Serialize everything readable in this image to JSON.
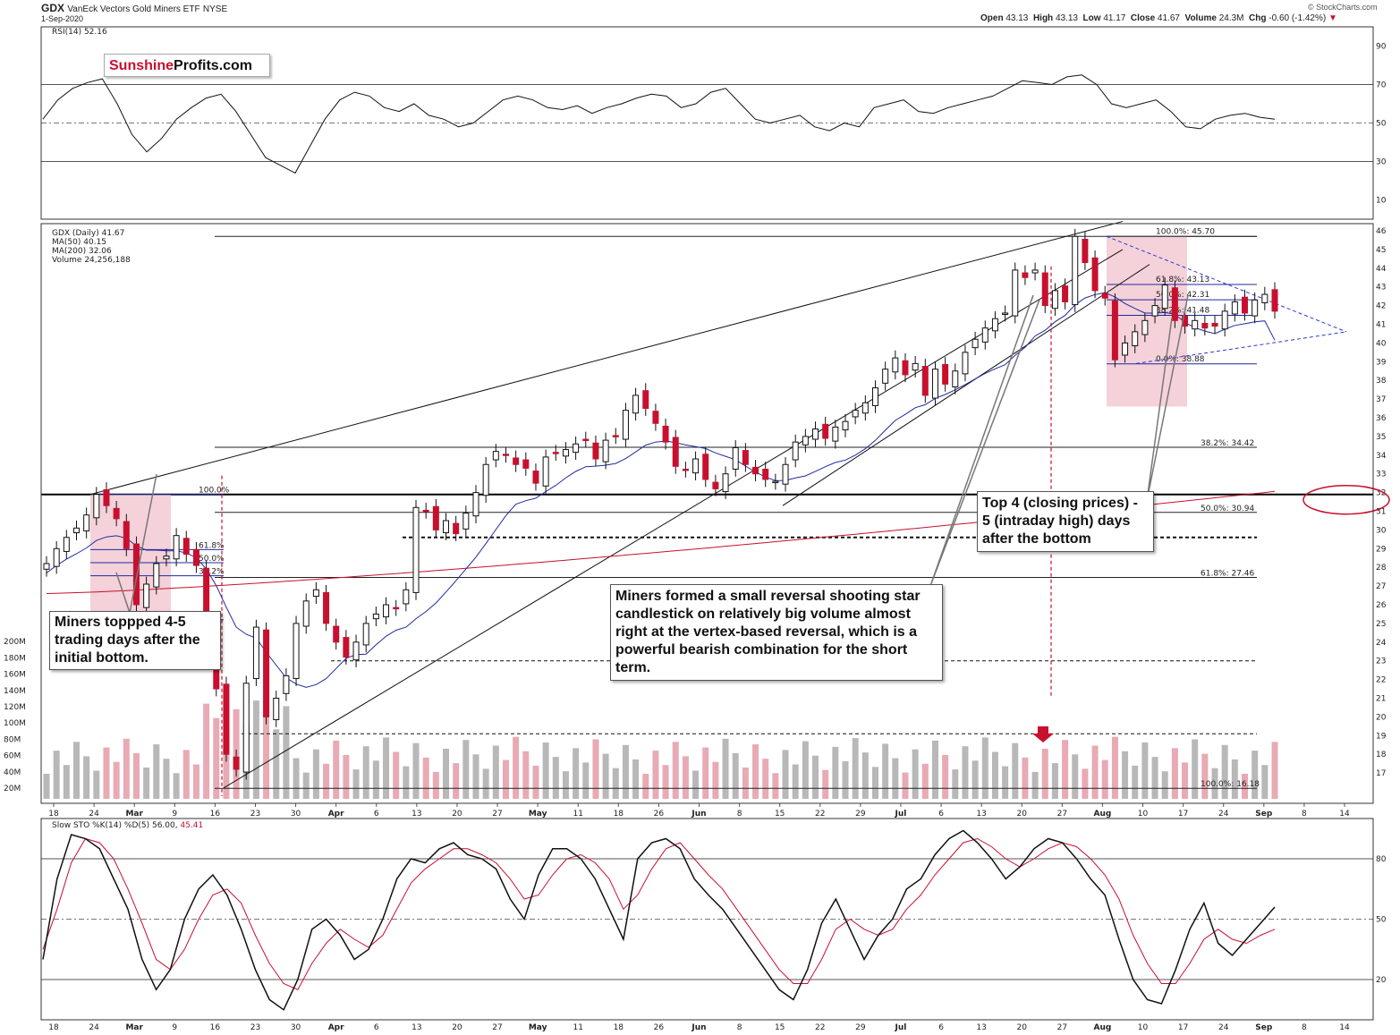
{
  "header": {
    "ticker": "GDX",
    "name": "VanEck Vectors Gold Miners ETF",
    "exchange": "NYSE",
    "date": "1-Sep-2020",
    "open_label": "Open",
    "open": "43.13",
    "high_label": "High",
    "high": "43.13",
    "low_label": "Low",
    "low": "41.17",
    "close_label": "Close",
    "close": "41.67",
    "volume_label": "Volume",
    "volume": "24.3M",
    "chg_label": "Chg",
    "chg": "-0.60 (-1.42%)",
    "chg_icon": "triangle-down-icon",
    "credit": "© StockCharts.com"
  },
  "logo": {
    "part1": "Sunshine",
    "part2": "Profits.com",
    "color1": "#c8102e",
    "color2": "#111111"
  },
  "colors": {
    "up": "#ffffff",
    "down": "#c8102e",
    "ma50": "#1f2a9e",
    "ma200": "#c8102e",
    "highlight": "#f3c6cf"
  },
  "annotations": {
    "left": "Miners toppped 4-5 trading days after the initial bottom.",
    "middle": "Miners formed a small reversal shooting star candlestick on relatively big volume almost right at the vertex-based reversal, which is a powerful bearish combination for the short term.",
    "right": "Top 4 (closing prices) - 5 (intraday high) days after the bottom"
  },
  "chart_data": [
    {
      "type": "line",
      "panel": "rsi",
      "title": "RSI(14) 52.16",
      "ylim": [
        0,
        100
      ],
      "yticks": [
        10,
        30,
        50,
        70,
        90
      ],
      "reference_lines": [
        30,
        50,
        70
      ],
      "values": [
        52,
        62,
        68,
        71,
        73,
        60,
        44,
        35,
        42,
        52,
        58,
        63,
        65,
        56,
        44,
        32,
        28,
        24,
        38,
        52,
        62,
        66,
        64,
        58,
        56,
        60,
        54,
        52,
        48,
        50,
        56,
        62,
        64,
        62,
        58,
        57,
        59,
        55,
        58,
        60,
        63,
        65,
        64,
        58,
        60,
        66,
        68,
        60,
        52,
        50,
        52,
        54,
        48,
        46,
        50,
        48,
        58,
        60,
        62,
        56,
        55,
        58,
        60,
        62,
        64,
        68,
        72,
        71,
        70,
        74,
        75,
        70,
        60,
        58,
        60,
        62,
        56,
        48,
        47,
        52,
        54,
        55,
        53,
        52
      ]
    },
    {
      "type": "candlestick",
      "panel": "price",
      "title": "GDX (Daily) 41.67",
      "legend": [
        "GDX (Daily) 41.67",
        "MA(50) 40.15",
        "MA(200) 32.06",
        "Volume 24,256,188"
      ],
      "ylim": [
        15,
        47
      ],
      "yticks": [
        17,
        18,
        19,
        20,
        21,
        22,
        23,
        24,
        25,
        26,
        27,
        28,
        29,
        30,
        31,
        32,
        33,
        34,
        35,
        36,
        37,
        38,
        39,
        40,
        41,
        42,
        43,
        44,
        45,
        46
      ],
      "volume_ticks": [
        "20M",
        "40M",
        "60M",
        "80M",
        "100M",
        "120M",
        "140M",
        "160M",
        "180M",
        "200M"
      ],
      "x_labels": [
        "18",
        "24",
        "Mar",
        "9",
        "16",
        "23",
        "30",
        "Apr",
        "6",
        "13",
        "20",
        "27",
        "May",
        "11",
        "18",
        "26",
        "Jun",
        "8",
        "15",
        "22",
        "29",
        "Jul",
        "6",
        "13",
        "20",
        "27",
        "Aug",
        "10",
        "17",
        "24",
        "Sep",
        "8",
        "14"
      ],
      "closes": [
        28.2,
        29.0,
        29.6,
        30.1,
        30.8,
        31.9,
        31.3,
        30.6,
        29.0,
        26.0,
        27.1,
        28.2,
        28.6,
        29.7,
        28.7,
        28.1,
        25.2,
        21.5,
        18.0,
        17.2,
        21.8,
        24.8,
        20.0,
        21.0,
        22.2,
        25.0,
        26.2,
        26.8,
        25.0,
        24.0,
        23.2,
        24.0,
        25.0,
        25.5,
        26.0,
        25.8,
        26.8,
        31.2,
        31.0,
        30.0,
        30.5,
        29.8,
        30.9,
        32.0,
        33.5,
        34.2,
        34.0,
        33.5,
        33.3,
        32.5,
        33.9,
        34.1,
        34.3,
        34.6,
        34.8,
        33.8,
        34.8,
        35.0,
        36.4,
        37.2,
        36.5,
        35.7,
        34.7,
        33.4,
        33.2,
        33.8,
        32.7,
        32.2,
        33.0,
        34.4,
        33.5,
        33.0,
        32.7,
        32.6,
        33.5,
        34.7,
        35.0,
        35.4,
        34.9,
        35.5,
        35.8,
        36.4,
        36.8,
        37.6,
        38.6,
        39.2,
        38.3,
        38.9,
        37.2,
        38.6,
        37.8,
        38.5,
        39.5,
        40.2,
        40.8,
        41.3,
        41.6,
        43.9,
        43.5,
        43.9,
        42.0,
        42.8,
        42.2,
        45.7,
        44.3,
        42.8,
        42.4,
        39.1,
        40.0,
        40.6,
        41.2,
        42.0,
        43.1,
        41.2,
        40.9,
        41.2,
        40.8,
        40.9,
        41.7,
        42.2,
        41.6,
        42.3,
        42.6,
        41.7
      ],
      "ma50_last": 40.15,
      "ma200_last": 32.06,
      "reference_lines": [
        {
          "label": "100.0%: 45.70",
          "value": 45.7
        },
        {
          "label": "38.2%: 34.42",
          "value": 34.42
        },
        {
          "label": "50.0%: 30.94",
          "value": 30.94
        },
        {
          "label": "61.8%: 27.46",
          "value": 27.46
        },
        {
          "label": "100.0%: 16.18",
          "value": 16.18
        }
      ],
      "left_fib_labels": [
        "100.0%",
        "61.8%",
        "50.0%",
        "38.2%",
        "0.0%"
      ],
      "right_fib_labels": [
        "100.0%: 45.70",
        "61.8%: 43.13",
        "50.0%: 42.31",
        "38.2%: 41.48",
        "0.0%: 38.88"
      ],
      "support_line": 31.9
    },
    {
      "type": "line",
      "panel": "stochastic",
      "title": "Slow STO %K(14) %D(5) 56.00, 45.41",
      "title_main": "Slow STO %K(14) %D(5) 56.00,",
      "title_d": "45.41",
      "ylim": [
        0,
        100
      ],
      "yticks": [
        20,
        50,
        80
      ],
      "series": [
        {
          "name": "%K",
          "values": [
            30,
            70,
            92,
            90,
            85,
            70,
            55,
            30,
            15,
            25,
            50,
            65,
            72,
            62,
            45,
            25,
            10,
            5,
            20,
            45,
            50,
            42,
            30,
            35,
            50,
            70,
            80,
            78,
            85,
            88,
            82,
            80,
            75,
            60,
            50,
            72,
            85,
            85,
            80,
            70,
            55,
            40,
            80,
            88,
            90,
            85,
            70,
            62,
            55,
            45,
            35,
            25,
            15,
            10,
            25,
            48,
            60,
            45,
            30,
            42,
            50,
            65,
            70,
            82,
            90,
            94,
            88,
            80,
            70,
            76,
            85,
            90,
            88,
            80,
            70,
            62,
            40,
            20,
            10,
            8,
            25,
            45,
            58,
            38,
            32,
            40,
            48,
            56
          ]
        },
        {
          "name": "%D",
          "values": [
            35,
            55,
            78,
            90,
            88,
            80,
            65,
            48,
            30,
            25,
            35,
            50,
            62,
            65,
            58,
            42,
            28,
            18,
            15,
            28,
            38,
            45,
            40,
            36,
            42,
            55,
            68,
            75,
            80,
            85,
            85,
            82,
            78,
            70,
            60,
            62,
            72,
            80,
            82,
            78,
            70,
            55,
            62,
            75,
            85,
            88,
            80,
            72,
            65,
            55,
            45,
            35,
            25,
            18,
            18,
            30,
            45,
            50,
            45,
            42,
            45,
            55,
            62,
            72,
            80,
            88,
            90,
            86,
            80,
            76,
            80,
            85,
            88,
            86,
            80,
            72,
            60,
            42,
            28,
            18,
            18,
            28,
            40,
            45,
            40,
            38,
            42,
            45
          ]
        }
      ]
    }
  ]
}
